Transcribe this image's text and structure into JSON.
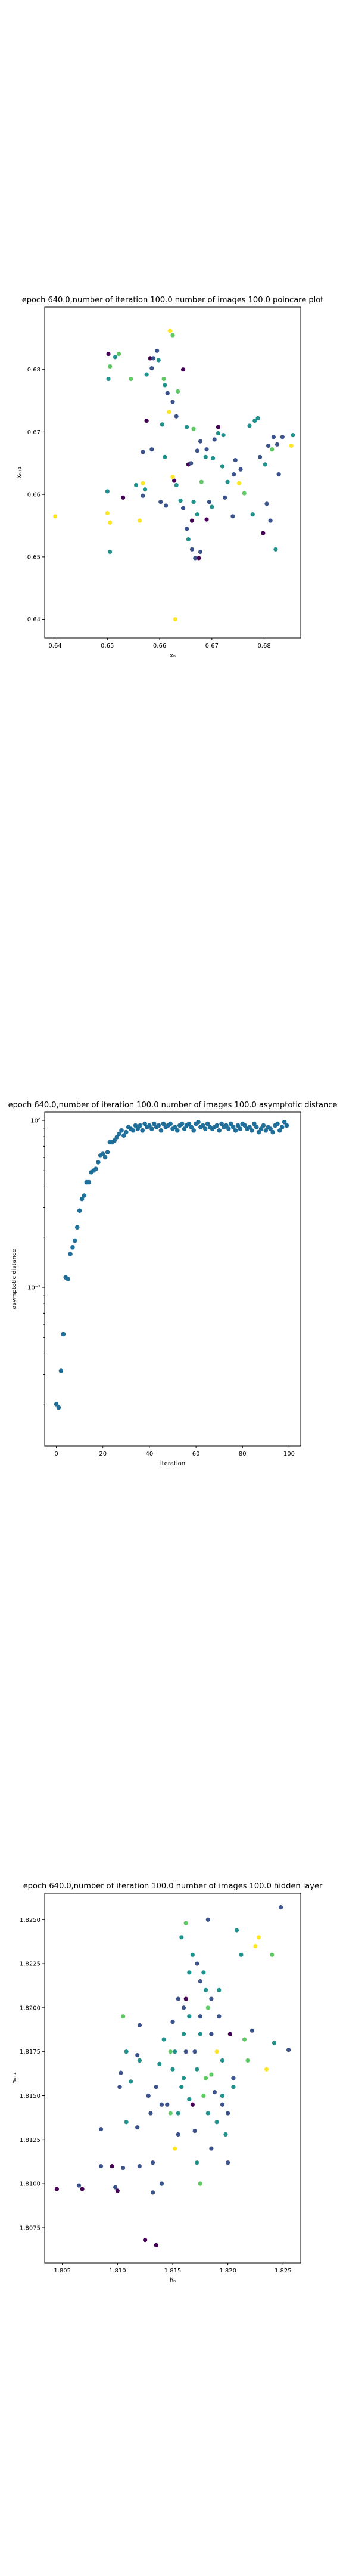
{
  "chart_data": [
    {
      "id": "poincare",
      "type": "scatter",
      "title": "epoch 640.0,number of iteration 100.0 number of images 100.0 poincare plot",
      "xlabel": "xₙ",
      "ylabel": "xₙ₊₁",
      "xlim": [
        0.638,
        0.687
      ],
      "ylim": [
        0.637,
        0.69
      ],
      "xticks": [
        0.64,
        0.65,
        0.66,
        0.67,
        0.68
      ],
      "xtick_labels": [
        "0.64",
        "0.65",
        "0.66",
        "0.67",
        "0.68"
      ],
      "yticks": [
        0.64,
        0.65,
        0.66,
        0.67,
        0.68
      ],
      "ytick_labels": [
        "0.64",
        "0.65",
        "0.66",
        "0.67",
        "0.68"
      ],
      "grid": false,
      "colormap": [
        "#440154",
        "#3b528b",
        "#21918c",
        "#5ec962",
        "#fde725"
      ],
      "points": [
        [
          0.64,
          0.6565,
          1.0
        ],
        [
          0.6502,
          0.6785,
          0.45
        ],
        [
          0.6505,
          0.6805,
          0.7
        ],
        [
          0.6502,
          0.6825,
          0.0
        ],
        [
          0.6515,
          0.682,
          0.6
        ],
        [
          0.6522,
          0.6825,
          0.65
        ],
        [
          0.6545,
          0.6785,
          0.75
        ],
        [
          0.65,
          0.6605,
          0.55
        ],
        [
          0.65,
          0.657,
          0.95
        ],
        [
          0.6505,
          0.6555,
          0.9
        ],
        [
          0.6505,
          0.6508,
          0.45
        ],
        [
          0.653,
          0.6595,
          0.1
        ],
        [
          0.6555,
          0.6615,
          0.55
        ],
        [
          0.6568,
          0.6618,
          0.9
        ],
        [
          0.6572,
          0.6608,
          0.6
        ],
        [
          0.6568,
          0.6598,
          0.3
        ],
        [
          0.6582,
          0.6818,
          0.0
        ],
        [
          0.6575,
          0.6792,
          0.5
        ],
        [
          0.6585,
          0.6802,
          0.3
        ],
        [
          0.6588,
          0.6818,
          0.2
        ],
        [
          0.6595,
          0.683,
          0.25
        ],
        [
          0.6598,
          0.6815,
          0.4
        ],
        [
          0.6608,
          0.6785,
          0.75
        ],
        [
          0.6615,
          0.6762,
          0.2
        ],
        [
          0.661,
          0.6775,
          0.55
        ],
        [
          0.662,
          0.6862,
          0.95
        ],
        [
          0.6625,
          0.6855,
          0.65
        ],
        [
          0.6635,
          0.6765,
          0.85
        ],
        [
          0.6625,
          0.6748,
          0.3
        ],
        [
          0.6645,
          0.68,
          0.0
        ],
        [
          0.6618,
          0.6732,
          0.95
        ],
        [
          0.6632,
          0.6725,
          0.2
        ],
        [
          0.6605,
          0.6712,
          0.55
        ],
        [
          0.6575,
          0.6718,
          0.0
        ],
        [
          0.6585,
          0.6672,
          0.35
        ],
        [
          0.6568,
          0.6668,
          0.3
        ],
        [
          0.6562,
          0.6558,
          0.9
        ],
        [
          0.6602,
          0.6588,
          0.25
        ],
        [
          0.6612,
          0.6582,
          0.2
        ],
        [
          0.6628,
          0.6622,
          0.05
        ],
        [
          0.6625,
          0.6628,
          0.9
        ],
        [
          0.6632,
          0.6615,
          0.55
        ],
        [
          0.6645,
          0.6578,
          0.3
        ],
        [
          0.6662,
          0.6558,
          0.0
        ],
        [
          0.6652,
          0.6545,
          0.25
        ],
        [
          0.6655,
          0.6528,
          0.5
        ],
        [
          0.6662,
          0.6512,
          0.3
        ],
        [
          0.6668,
          0.6498,
          0.15
        ],
        [
          0.6678,
          0.6508,
          0.2
        ],
        [
          0.6675,
          0.6498,
          0.0
        ],
        [
          0.6672,
          0.6568,
          0.4
        ],
        [
          0.6665,
          0.6588,
          0.6
        ],
        [
          0.6695,
          0.6588,
          0.35
        ],
        [
          0.6702,
          0.6658,
          0.45
        ],
        [
          0.6678,
          0.6685,
          0.25
        ],
        [
          0.6665,
          0.6705,
          0.75
        ],
        [
          0.6652,
          0.6708,
          0.55
        ],
        [
          0.6655,
          0.6648,
          0.0
        ],
        [
          0.6672,
          0.667,
          0.3
        ],
        [
          0.6688,
          0.666,
          0.6
        ],
        [
          0.6705,
          0.6688,
          0.3
        ],
        [
          0.6712,
          0.6698,
          0.55
        ],
        [
          0.6712,
          0.6708,
          0.0
        ],
        [
          0.6722,
          0.6695,
          0.45
        ],
        [
          0.6725,
          0.6595,
          0.25
        ],
        [
          0.6742,
          0.6632,
          0.35
        ],
        [
          0.6752,
          0.6618,
          0.95
        ],
        [
          0.6762,
          0.6602,
          0.85
        ],
        [
          0.6778,
          0.6568,
          0.55
        ],
        [
          0.6755,
          0.664,
          0.2
        ],
        [
          0.6772,
          0.671,
          0.6
        ],
        [
          0.6782,
          0.6718,
          0.45
        ],
        [
          0.6788,
          0.6722,
          0.4
        ],
        [
          0.6792,
          0.666,
          0.3
        ],
        [
          0.6802,
          0.6648,
          0.55
        ],
        [
          0.6808,
          0.6678,
          0.3
        ],
        [
          0.6818,
          0.6692,
          0.35
        ],
        [
          0.6815,
          0.6672,
          0.85
        ],
        [
          0.6825,
          0.668,
          0.3
        ],
        [
          0.6835,
          0.6692,
          0.2
        ],
        [
          0.6828,
          0.6632,
          0.15
        ],
        [
          0.6852,
          0.6678,
          0.95
        ],
        [
          0.6855,
          0.6695,
          0.5
        ],
        [
          0.6805,
          0.6585,
          0.2
        ],
        [
          0.6812,
          0.6558,
          0.25
        ],
        [
          0.6798,
          0.6538,
          0.05
        ],
        [
          0.6822,
          0.6512,
          0.45
        ],
        [
          0.6745,
          0.6655,
          0.25
        ],
        [
          0.672,
          0.6645,
          0.5
        ],
        [
          0.669,
          0.6672,
          0.2
        ],
        [
          0.673,
          0.662,
          0.6
        ],
        [
          0.669,
          0.656,
          0.1
        ],
        [
          0.674,
          0.6565,
          0.3
        ],
        [
          0.67,
          0.658,
          0.45
        ],
        [
          0.661,
          0.666,
          0.55
        ],
        [
          0.664,
          0.659,
          0.4
        ],
        [
          0.663,
          0.64,
          0.95
        ],
        [
          0.668,
          0.662,
          0.65
        ],
        [
          0.666,
          0.665,
          0.25
        ]
      ]
    },
    {
      "id": "asymptotic",
      "type": "scatter",
      "title": "epoch 640.0,number of iteration 100.0  number of images 100.0 asymptotic distance",
      "xlabel": "iteration",
      "ylabel": "asymptotic distance",
      "xlim": [
        -5,
        105
      ],
      "yscale": "log",
      "ylim_log10": [
        -1.95,
        0.05
      ],
      "xticks": [
        0,
        20,
        40,
        60,
        80,
        100
      ],
      "xtick_labels": [
        "0",
        "20",
        "40",
        "60",
        "80",
        "100"
      ],
      "yticks_log10": [
        -1,
        0
      ],
      "ytick_labels": [
        "10⁻¹",
        "10⁰"
      ],
      "grid": false,
      "color": "#1f6f9a",
      "x": [
        0,
        1,
        2,
        3,
        4,
        5,
        6,
        7,
        8,
        9,
        10,
        11,
        12,
        13,
        14,
        15,
        16,
        17,
        18,
        19,
        20,
        21,
        22,
        23,
        24,
        25,
        26,
        27,
        28,
        29,
        30,
        31,
        32,
        33,
        34,
        35,
        36,
        37,
        38,
        39,
        40,
        41,
        42,
        43,
        44,
        45,
        46,
        47,
        48,
        49,
        50,
        51,
        52,
        53,
        54,
        55,
        56,
        57,
        58,
        59,
        60,
        61,
        62,
        63,
        64,
        65,
        66,
        67,
        68,
        69,
        70,
        71,
        72,
        73,
        74,
        75,
        76,
        77,
        78,
        79,
        80,
        81,
        82,
        83,
        84,
        85,
        86,
        87,
        88,
        89,
        90,
        91,
        92,
        93,
        94,
        95,
        96,
        97,
        98,
        99
      ],
      "y_log10": [
        -1.7,
        -1.72,
        -1.5,
        -1.28,
        -0.94,
        -0.95,
        -0.8,
        -0.76,
        -0.72,
        -0.64,
        -0.54,
        -0.47,
        -0.45,
        -0.37,
        -0.37,
        -0.31,
        -0.3,
        -0.29,
        -0.25,
        -0.21,
        -0.2,
        -0.22,
        -0.19,
        -0.13,
        -0.13,
        -0.12,
        -0.1,
        -0.08,
        -0.06,
        -0.09,
        -0.07,
        -0.04,
        -0.05,
        -0.06,
        -0.03,
        -0.05,
        -0.03,
        -0.06,
        -0.02,
        -0.04,
        -0.03,
        -0.05,
        -0.02,
        -0.04,
        -0.03,
        -0.06,
        -0.02,
        -0.04,
        -0.03,
        -0.02,
        -0.05,
        -0.04,
        -0.06,
        -0.03,
        -0.02,
        -0.05,
        -0.03,
        -0.02,
        -0.04,
        -0.06,
        -0.02,
        -0.01,
        -0.04,
        -0.03,
        -0.05,
        -0.02,
        -0.04,
        -0.05,
        -0.04,
        -0.03,
        -0.06,
        -0.02,
        -0.04,
        -0.03,
        -0.05,
        -0.02,
        -0.04,
        -0.06,
        -0.03,
        -0.05,
        -0.02,
        -0.03,
        -0.05,
        -0.04,
        -0.06,
        -0.02,
        -0.04,
        -0.07,
        -0.05,
        -0.03,
        -0.06,
        -0.04,
        -0.05,
        -0.07,
        -0.03,
        -0.02,
        -0.06,
        -0.04,
        -0.01,
        -0.03
      ]
    },
    {
      "id": "hidden",
      "type": "scatter",
      "title": "epoch 640.0,number of iteration 100.0  number of images 100.0 hidden layer",
      "xlabel": "hₙ",
      "ylabel": "hₙ₊₁",
      "xlim": [
        1.8034,
        1.8266
      ],
      "ylim": [
        1.8055,
        1.8265
      ],
      "xticks": [
        1.805,
        1.81,
        1.815,
        1.82,
        1.825
      ],
      "xtick_labels": [
        "1.805",
        "1.810",
        "1.815",
        "1.820",
        "1.825"
      ],
      "yticks": [
        1.8075,
        1.81,
        1.8125,
        1.815,
        1.8175,
        1.82,
        1.8225,
        1.825
      ],
      "ytick_labels": [
        "1.8075",
        "1.8100",
        "1.8125",
        "1.8150",
        "1.8175",
        "1.8200",
        "1.8225",
        "1.8250"
      ],
      "grid": false,
      "colormap": [
        "#440154",
        "#3b528b",
        "#21918c",
        "#5ec962",
        "#fde725"
      ],
      "points": [
        [
          1.8045,
          1.8097,
          0.0
        ],
        [
          1.8065,
          1.8099,
          0.15
        ],
        [
          1.8068,
          1.8097,
          0.0
        ],
        [
          1.8085,
          1.811,
          0.2
        ],
        [
          1.8085,
          1.8131,
          0.25
        ],
        [
          1.8095,
          1.811,
          0.1
        ],
        [
          1.8098,
          1.8098,
          0.3
        ],
        [
          1.81,
          1.8096,
          0.05
        ],
        [
          1.8105,
          1.8109,
          0.2
        ],
        [
          1.8108,
          1.8135,
          0.4
        ],
        [
          1.8102,
          1.8155,
          0.25
        ],
        [
          1.8103,
          1.8163,
          0.3
        ],
        [
          1.8105,
          1.8195,
          0.75
        ],
        [
          1.8112,
          1.8158,
          0.6
        ],
        [
          1.8118,
          1.8173,
          0.3
        ],
        [
          1.8118,
          1.8132,
          0.2
        ],
        [
          1.812,
          1.817,
          0.45
        ],
        [
          1.812,
          1.811,
          0.25
        ],
        [
          1.8125,
          1.8068,
          0.05
        ],
        [
          1.8132,
          1.8112,
          0.3
        ],
        [
          1.8132,
          1.8095,
          0.25
        ],
        [
          1.8135,
          1.8065,
          0.1
        ],
        [
          1.8138,
          1.8168,
          0.55
        ],
        [
          1.8135,
          1.8155,
          0.25
        ],
        [
          1.814,
          1.8145,
          0.2
        ],
        [
          1.8142,
          1.8182,
          0.5
        ],
        [
          1.8148,
          1.814,
          0.65
        ],
        [
          1.815,
          1.8192,
          0.3
        ],
        [
          1.8152,
          1.8175,
          0.6
        ],
        [
          1.8152,
          1.812,
          0.95
        ],
        [
          1.8155,
          1.8128,
          0.3
        ],
        [
          1.8158,
          1.8155,
          0.55
        ],
        [
          1.816,
          1.8185,
          0.45
        ],
        [
          1.816,
          1.82,
          0.25
        ],
        [
          1.8162,
          1.8205,
          0.1
        ],
        [
          1.8162,
          1.8248,
          0.85
        ],
        [
          1.8165,
          1.8195,
          0.6
        ],
        [
          1.8165,
          1.8148,
          0.5
        ],
        [
          1.8168,
          1.8145,
          0.05
        ],
        [
          1.817,
          1.8175,
          0.3
        ],
        [
          1.8172,
          1.8165,
          0.45
        ],
        [
          1.8172,
          1.8225,
          0.35
        ],
        [
          1.8175,
          1.8215,
          0.2
        ],
        [
          1.8175,
          1.81,
          0.8
        ],
        [
          1.8178,
          1.822,
          0.45
        ],
        [
          1.818,
          1.821,
          0.55
        ],
        [
          1.818,
          1.816,
          0.75
        ],
        [
          1.8182,
          1.82,
          0.65
        ],
        [
          1.8182,
          1.825,
          0.3
        ],
        [
          1.8185,
          1.8185,
          0.25
        ],
        [
          1.8185,
          1.8162,
          0.65
        ],
        [
          1.8188,
          1.8152,
          0.35
        ],
        [
          1.819,
          1.8135,
          0.55
        ],
        [
          1.819,
          1.8175,
          0.9
        ],
        [
          1.8192,
          1.8195,
          0.3
        ],
        [
          1.8195,
          1.8145,
          0.2
        ],
        [
          1.8195,
          1.815,
          0.6
        ],
        [
          1.8198,
          1.8128,
          0.45
        ],
        [
          1.82,
          1.8112,
          0.3
        ],
        [
          1.8202,
          1.8185,
          0.05
        ],
        [
          1.8205,
          1.8155,
          0.55
        ],
        [
          1.8205,
          1.816,
          0.3
        ],
        [
          1.8208,
          1.8244,
          0.6
        ],
        [
          1.8212,
          1.823,
          0.45
        ],
        [
          1.8215,
          1.8182,
          0.85
        ],
        [
          1.8218,
          1.817,
          0.75
        ],
        [
          1.8222,
          1.8187,
          0.35
        ],
        [
          1.8225,
          1.8235,
          0.95
        ],
        [
          1.8228,
          1.824,
          0.9
        ],
        [
          1.8235,
          1.8165,
          0.9
        ],
        [
          1.824,
          1.823,
          0.85
        ],
        [
          1.8242,
          1.818,
          0.5
        ],
        [
          1.8248,
          1.8257,
          0.3
        ],
        [
          1.8255,
          1.8176,
          0.35
        ],
        [
          1.8168,
          1.823,
          0.5
        ],
        [
          1.8158,
          1.824,
          0.4
        ],
        [
          1.8145,
          1.8145,
          0.3
        ],
        [
          1.815,
          1.8165,
          0.4
        ],
        [
          1.8175,
          1.8195,
          0.25
        ],
        [
          1.8192,
          1.821,
          0.55
        ],
        [
          1.8128,
          1.815,
          0.25
        ],
        [
          1.814,
          1.81,
          0.2
        ],
        [
          1.8155,
          1.814,
          0.45
        ],
        [
          1.817,
          1.813,
          0.3
        ],
        [
          1.8185,
          1.8205,
          0.35
        ],
        [
          1.8165,
          1.822,
          0.4
        ],
        [
          1.812,
          1.819,
          0.35
        ],
        [
          1.8108,
          1.8175,
          0.55
        ],
        [
          1.8178,
          1.815,
          0.7
        ],
        [
          1.82,
          1.814,
          0.2
        ],
        [
          1.816,
          1.816,
          0.6
        ],
        [
          1.8148,
          1.8175,
          0.65
        ],
        [
          1.8172,
          1.8112,
          0.45
        ],
        [
          1.813,
          1.814,
          0.35
        ],
        [
          1.8185,
          1.812,
          0.25
        ],
        [
          1.8162,
          1.8175,
          0.2
        ],
        [
          1.8175,
          1.8185,
          0.6
        ],
        [
          1.8195,
          1.817,
          0.4
        ],
        [
          1.8155,
          1.8205,
          0.3
        ],
        [
          1.8182,
          1.814,
          0.55
        ]
      ]
    }
  ]
}
